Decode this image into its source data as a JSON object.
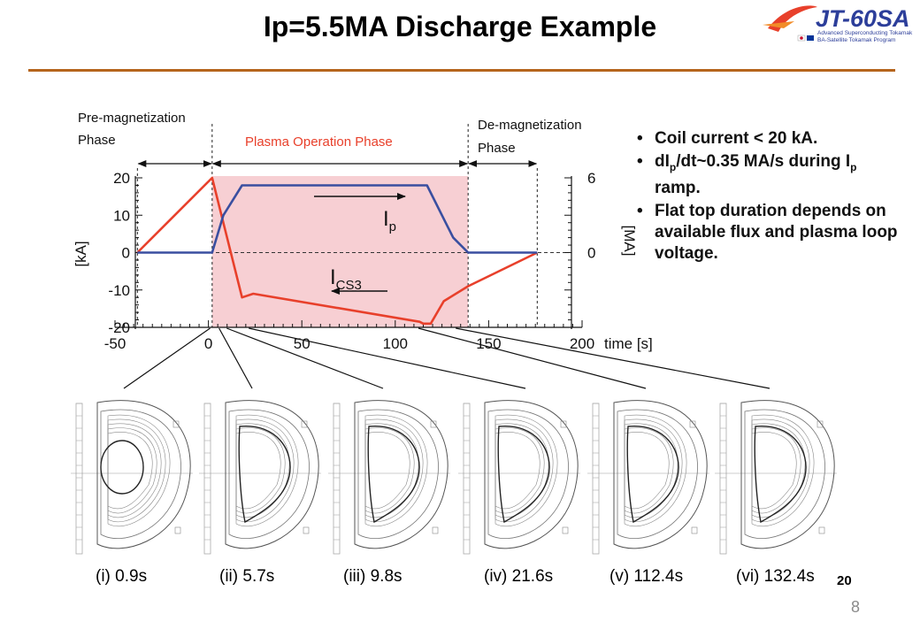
{
  "title": "Ip=5.5MA Discharge Example",
  "logo": {
    "name": "JT-60SA",
    "subtitle1": "Advanced Superconducting Tokamak",
    "subtitle2": "BA-Satellite Tokamak Program"
  },
  "page_number": "8",
  "figure_number": "20",
  "bullets": [
    {
      "text": "Coil current < 20 kA."
    },
    {
      "pre": "dI",
      "sub": "p",
      "post": "/dt~0.35 MA/s during I",
      "sub2": "p",
      "post2": " ramp."
    },
    {
      "text": "Flat top duration depends on available flux and plasma loop voltage."
    }
  ],
  "equilibria": [
    {
      "label": "(i) 0.9s",
      "t": 0.9
    },
    {
      "label": "(ii) 5.7s",
      "t": 5.7
    },
    {
      "label": "(iii) 9.8s",
      "t": 9.8
    },
    {
      "label": "(iv) 21.6s",
      "t": 21.6
    },
    {
      "label": "(v) 112.4s",
      "t": 112.4
    },
    {
      "label": "(vi) 132.4s",
      "t": 132.4
    }
  ],
  "chart_data": {
    "type": "line",
    "xlabel": "time [s]",
    "ylabel_left": "[kA]",
    "ylabel_right": "[MA]",
    "xlim": [
      -50,
      200
    ],
    "ylim_left": [
      -20,
      20
    ],
    "ylim_right": [
      -20,
      6
    ],
    "xticks": [
      -50,
      0,
      50,
      100,
      150,
      200
    ],
    "yticks_left": [
      20,
      10,
      0,
      -10,
      -20
    ],
    "yticks_right": [
      6,
      0
    ],
    "phases": [
      {
        "name": "Pre-magnetization Phase",
        "line1": "Pre-magnetization",
        "line2": "Phase",
        "start": -38,
        "end": 2
      },
      {
        "name": "Plasma Operation Phase",
        "start": 2,
        "end": 139,
        "color": "#f7cfd3"
      },
      {
        "name": "De-magnetization Phase",
        "line1": "De-magnetization",
        "line2": "Phase",
        "start": 139,
        "end": 176
      }
    ],
    "series": [
      {
        "name": "I_CS3",
        "label_main": "I",
        "label_sub": "CS3",
        "color": "#e8402b",
        "axis": "left",
        "x": [
          -38,
          2,
          18,
          24,
          113,
          115,
          119,
          126,
          139,
          176
        ],
        "y": [
          0,
          20,
          -12,
          -11,
          -18.5,
          -19,
          -19,
          -13,
          -9,
          0
        ]
      },
      {
        "name": "I_p",
        "label_main": "I",
        "label_sub": "p",
        "color": "#3a4fa0",
        "axis": "left",
        "x": [
          -38,
          2,
          8,
          18,
          117,
          127,
          131,
          139,
          176
        ],
        "y": [
          0,
          0,
          10,
          18,
          18,
          8,
          4,
          0,
          0
        ]
      }
    ]
  }
}
